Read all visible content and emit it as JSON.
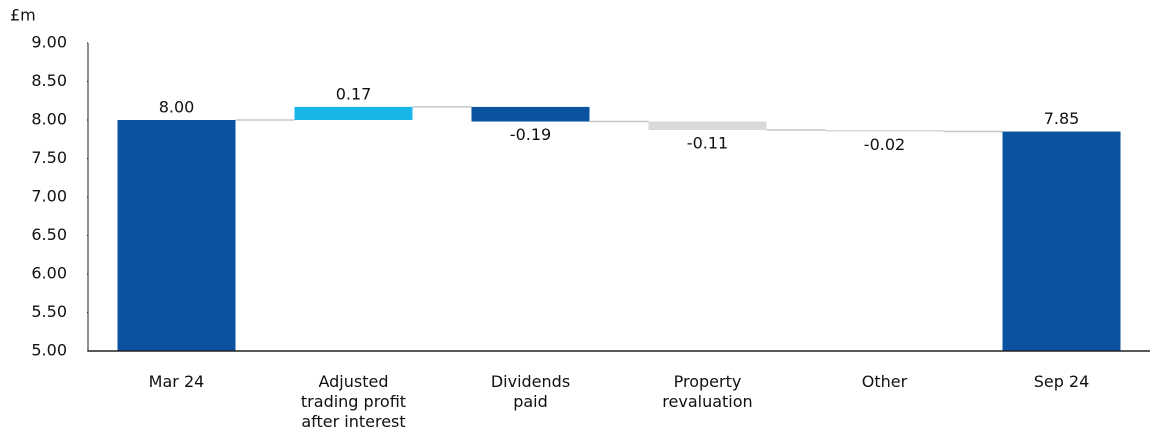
{
  "chart_data": {
    "type": "waterfall",
    "unit_label": "£m",
    "categories": [
      "Mar 24",
      "Adjusted\ntrading profit\nafter interest",
      "Dividends\npaid",
      "Property\nrevaluation",
      "Other",
      "Sep 24"
    ],
    "kinds": [
      "total",
      "delta",
      "delta",
      "delta",
      "delta",
      "total"
    ],
    "values": [
      8.0,
      0.17,
      -0.19,
      -0.11,
      -0.02,
      7.85
    ],
    "value_labels": [
      "8.00",
      "0.17",
      "-0.19",
      "-0.11",
      "-0.02",
      "7.85"
    ],
    "colors": [
      "#0b52a1",
      "#19b4e8",
      "#0b52a1",
      "#d9d9d9",
      "#d9d9d9",
      "#0b52a1"
    ],
    "ylim": [
      5,
      9
    ],
    "yticks": [
      {
        "value": 5,
        "label": "5.00"
      },
      {
        "value": 5.5,
        "label": "5.50"
      },
      {
        "value": 6,
        "label": "6.00"
      },
      {
        "value": 6.5,
        "label": "6.50"
      },
      {
        "value": 7,
        "label": "7.00"
      },
      {
        "value": 7.5,
        "label": "7.50"
      },
      {
        "value": 8,
        "label": "8.00"
      },
      {
        "value": 8.5,
        "label": "8.50"
      },
      {
        "value": 9,
        "label": "9.00"
      }
    ],
    "grid": false
  }
}
